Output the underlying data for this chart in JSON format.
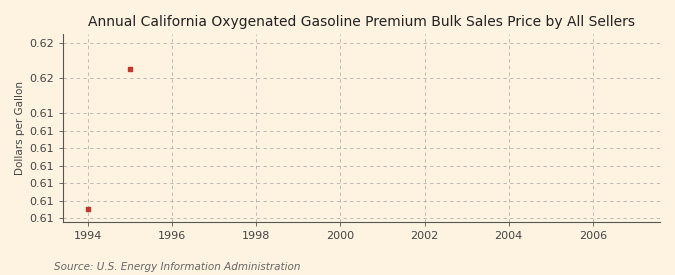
{
  "title": "Annual California Oxygenated Gasoline Premium Bulk Sales Price by All Sellers",
  "ylabel": "Dollars per Gallon",
  "source_text": "Source: U.S. Energy Information Administration",
  "x_data": [
    1994,
    1995
  ],
  "y_data": [
    0.6105,
    0.6185
  ],
  "xlim": [
    1993.4,
    2007.6
  ],
  "ylim": [
    0.6098,
    0.6205
  ],
  "xticks": [
    1994,
    1996,
    1998,
    2000,
    2002,
    2004,
    2006
  ],
  "ytick_values": [
    0.61,
    0.611,
    0.612,
    0.613,
    0.614,
    0.615,
    0.616,
    0.618,
    0.62
  ],
  "ytick_labels": [
    "0.61",
    "0.61",
    "0.61",
    "0.61",
    "0.61",
    "0.61",
    "0.61",
    "0.62",
    "0.62"
  ],
  "marker_color": "#c0392b",
  "marker": "s",
  "marker_size": 3,
  "bg_color": "#fdf3e0",
  "plot_bg_color": "#fdf3e0",
  "grid_color": "#aaaaaa",
  "title_fontsize": 10,
  "label_fontsize": 7.5,
  "tick_fontsize": 8,
  "source_fontsize": 7.5
}
